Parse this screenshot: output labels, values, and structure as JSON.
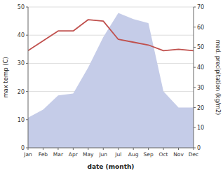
{
  "chart_data": {
    "type": "line",
    "categories": [
      "Jan",
      "Feb",
      "Mar",
      "Apr",
      "May",
      "Jun",
      "Jul",
      "Aug",
      "Sep",
      "Oct",
      "Nov",
      "Dec"
    ],
    "xlabel": "date (month)",
    "ylabel": "max temp (C)",
    "y2label": "med. precipitation (kg/m2)",
    "ylim": [
      0,
      50
    ],
    "yticks": [
      0,
      10,
      20,
      30,
      40,
      50
    ],
    "y2lim": [
      0,
      70
    ],
    "y2ticks": [
      0,
      10,
      20,
      30,
      40,
      50,
      60,
      70
    ],
    "grid": true,
    "series": [
      {
        "type": "area",
        "axis": "y2",
        "color": "#c5cce8",
        "values": [
          15,
          19,
          26,
          27,
          40,
          55,
          67,
          64,
          62,
          28,
          20,
          20
        ]
      },
      {
        "type": "line",
        "color": "#c0504d",
        "values": [
          34.5,
          38.0,
          41.5,
          41.5,
          45.5,
          45.0,
          38.5,
          37.5,
          36.5,
          34.5,
          35.0,
          34.5
        ]
      }
    ]
  }
}
